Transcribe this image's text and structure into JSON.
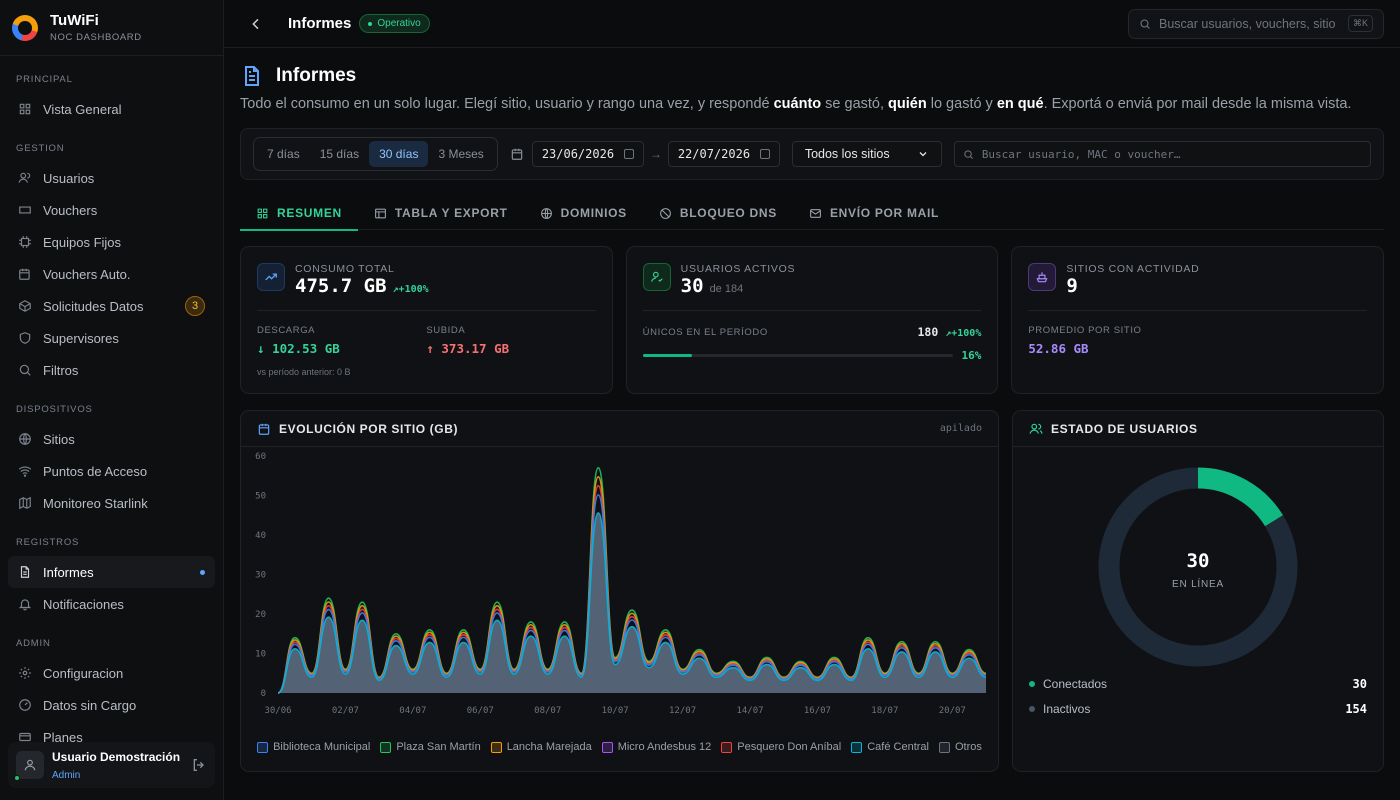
{
  "brand": {
    "name": "TuWiFi",
    "subtitle": "NOC DASHBOARD"
  },
  "sidebar": {
    "sections": [
      {
        "title": "PRINCIPAL",
        "items": [
          {
            "label": "Vista General",
            "icon": "grid-icon"
          }
        ]
      },
      {
        "title": "GESTION",
        "items": [
          {
            "label": "Usuarios",
            "icon": "users-icon"
          },
          {
            "label": "Vouchers",
            "icon": "ticket-icon"
          },
          {
            "label": "Equipos Fijos",
            "icon": "cpu-icon"
          },
          {
            "label": "Vouchers Auto.",
            "icon": "calendar-clock-icon"
          },
          {
            "label": "Solicitudes Datos",
            "icon": "package-icon",
            "badge": "3"
          },
          {
            "label": "Supervisores",
            "icon": "shield-icon"
          },
          {
            "label": "Filtros",
            "icon": "search-icon"
          }
        ]
      },
      {
        "title": "DISPOSITIVOS",
        "items": [
          {
            "label": "Sitios",
            "icon": "globe-icon"
          },
          {
            "label": "Puntos de Acceso",
            "icon": "wifi-icon"
          },
          {
            "label": "Monitoreo Starlink",
            "icon": "map-icon"
          }
        ]
      },
      {
        "title": "REGISTROS",
        "items": [
          {
            "label": "Informes",
            "icon": "file-icon",
            "active": true
          },
          {
            "label": "Notificaciones",
            "icon": "bell-icon"
          }
        ]
      },
      {
        "title": "ADMIN",
        "items": [
          {
            "label": "Configuracion",
            "icon": "gear-icon"
          },
          {
            "label": "Datos sin Cargo",
            "icon": "gauge-icon"
          },
          {
            "label": "Planes",
            "icon": "card-icon"
          }
        ]
      }
    ]
  },
  "user": {
    "name": "Usuario Demostración",
    "role": "Admin"
  },
  "topbar": {
    "title": "Informes",
    "status": "Operativo",
    "search_placeholder": "Buscar usuarios, vouchers, sitio",
    "shortcut": "⌘K"
  },
  "page": {
    "title": "Informes",
    "intro_1": "Todo el consumo en un solo lugar. Elegí sitio, usuario y rango una vez, y respondé ",
    "intro_b1": "cuánto",
    "intro_2": " se gastó, ",
    "intro_b2": "quién",
    "intro_3": " lo gastó y ",
    "intro_b3": "en qué",
    "intro_4": ". Exportá o enviá por mail desde la misma vista."
  },
  "filters": {
    "ranges": [
      "7 días",
      "15 días",
      "30 días",
      "3 Meses"
    ],
    "selected_range": "30 días",
    "date_from": "23/06/2026",
    "date_arrow": "→",
    "date_to": "22/07/2026",
    "site": "Todos los sitios",
    "search_placeholder": "Buscar usuario, MAC o voucher…"
  },
  "tabs": [
    {
      "label": "RESUMEN",
      "icon": "grid-icon",
      "active": true
    },
    {
      "label": "TABLA Y EXPORT",
      "icon": "table-icon"
    },
    {
      "label": "DOMINIOS",
      "icon": "globe-icon"
    },
    {
      "label": "BLOQUEO DNS",
      "icon": "ban-icon"
    },
    {
      "label": "ENVÍO POR MAIL",
      "icon": "mail-icon"
    }
  ],
  "kpis": {
    "consumo": {
      "title": "CONSUMO TOTAL",
      "value": "475.7 GB",
      "delta": "+100%",
      "down_label": "DESCARGA",
      "down_value": "102.53 GB",
      "up_label": "SUBIDA",
      "up_value": "373.17 GB",
      "note": "vs período anterior: 0 B"
    },
    "usuarios": {
      "title": "USUARIOS ACTIVOS",
      "value": "30",
      "of": "de 184",
      "unique_label": "ÚNICOS EN EL PERÍODO",
      "unique_value": "180",
      "unique_delta": "+100%",
      "pct": "16%",
      "pct_fraction": 0.16
    },
    "sitios": {
      "title": "SITIOS CON ACTIVIDAD",
      "value": "9",
      "avg_label": "PROMEDIO POR SITIO",
      "avg_value": "52.86 GB"
    }
  },
  "colors": {
    "accent": "#10b981",
    "download": "#34d399",
    "upload": "#f87171",
    "avg": "#a78bfa"
  },
  "chart_data": {
    "type": "area",
    "title": "EVOLUCIÓN POR SITIO (GB)",
    "tag": "apilado",
    "x_ticks": [
      "30/06",
      "02/07",
      "04/07",
      "06/07",
      "08/07",
      "10/07",
      "12/07",
      "14/07",
      "16/07",
      "18/07",
      "20/07"
    ],
    "y_ticks": [
      0,
      10,
      20,
      30,
      40,
      50,
      60
    ],
    "ylim": [
      0,
      60
    ],
    "series": [
      {
        "name": "Biblioteca Municipal",
        "color": "#3b82f6"
      },
      {
        "name": "Plaza San Martín",
        "color": "#22c55e"
      },
      {
        "name": "Lancha Marejada",
        "color": "#f59e0b"
      },
      {
        "name": "Micro Andesbus 12",
        "color": "#a855f7"
      },
      {
        "name": "Pesquero Don Aníbal",
        "color": "#ef4444"
      },
      {
        "name": "Café Central",
        "color": "#06b6d4"
      },
      {
        "name": "Otros",
        "color": "#6b7280"
      }
    ],
    "x_days": [
      0,
      0.5,
      1,
      1.5,
      2,
      2.5,
      3,
      3.5,
      4,
      4.5,
      5,
      5.5,
      6,
      6.5,
      7,
      7.5,
      8,
      8.5,
      9,
      9.5,
      10,
      10.5,
      11,
      11.5,
      12,
      12.5,
      13,
      13.5,
      14,
      14.5,
      15,
      15.5,
      16,
      16.5,
      17,
      17.5,
      18,
      18.5,
      19,
      19.5,
      20,
      20.5,
      21
    ],
    "total_values": [
      0,
      14,
      5,
      24,
      6,
      23,
      4,
      15,
      6,
      16,
      5,
      16,
      6,
      23,
      6,
      18,
      6,
      18,
      5,
      57,
      9,
      21,
      8,
      16,
      6,
      11,
      5,
      8,
      4,
      9,
      4,
      8,
      4,
      9,
      4,
      14,
      5,
      13,
      5,
      13,
      5,
      11,
      5
    ]
  },
  "donut": {
    "title": "ESTADO DE USUARIOS",
    "center_value": "30",
    "center_label": "EN LÍNEA",
    "items": [
      {
        "label": "Conectados",
        "value": 30,
        "color": "#10b981"
      },
      {
        "label": "Inactivos",
        "value": 154,
        "color": "#1e2a38"
      }
    ]
  }
}
